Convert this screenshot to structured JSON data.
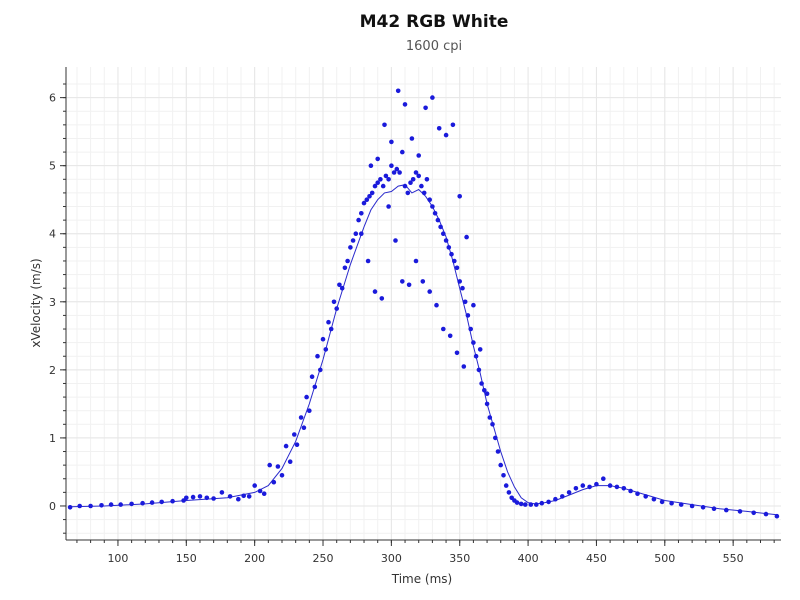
{
  "chart_data": {
    "type": "scatter",
    "title": "M42 RGB White",
    "subtitle": "1600 cpi",
    "xlabel": "Time (ms)",
    "ylabel": "xVelocity (m/s)",
    "xlim": [
      62,
      585
    ],
    "ylim": [
      -0.5,
      6.45
    ],
    "xticks": [
      100,
      150,
      200,
      250,
      300,
      350,
      400,
      450,
      500,
      550
    ],
    "yticks": [
      0,
      1,
      2,
      3,
      4,
      5,
      6
    ],
    "grid": true,
    "legend": "none",
    "colors": {
      "points": "#1a1adb",
      "line": "#2a2acc",
      "grid": "#e6e6e6",
      "axis": "#333333"
    },
    "series": [
      {
        "kind": "points",
        "x": [
          65,
          72,
          80,
          88,
          95,
          102,
          110,
          118,
          125,
          132,
          140,
          148,
          150,
          155,
          160,
          165,
          170,
          176,
          182,
          188,
          192,
          196,
          200,
          204,
          207,
          211,
          214,
          217,
          220,
          223,
          226,
          229,
          231,
          234,
          236,
          238,
          240,
          242,
          244,
          246,
          248,
          250,
          252,
          254,
          256,
          258,
          260,
          262,
          264,
          266,
          268,
          270,
          272,
          274,
          276,
          278,
          280,
          282,
          284,
          286,
          288,
          290,
          292,
          294,
          296,
          298,
          300,
          302,
          304,
          306,
          308,
          310,
          312,
          314,
          316,
          318,
          320,
          322,
          324,
          326,
          328,
          330,
          332,
          334,
          336,
          338,
          340,
          342,
          344,
          346,
          348,
          350,
          352,
          354,
          356,
          358,
          360,
          362,
          364,
          366,
          368,
          370,
          372,
          374,
          376,
          378,
          380,
          382,
          384,
          386,
          388,
          390,
          392,
          395,
          398,
          402,
          406,
          410,
          415,
          420,
          425,
          430,
          435,
          440,
          445,
          450,
          455,
          460,
          465,
          470,
          475,
          480,
          486,
          492,
          498,
          505,
          512,
          520,
          528,
          536,
          545,
          555,
          565,
          574,
          582,
          278,
          283,
          288,
          293,
          298,
          303,
          308,
          313,
          318,
          323,
          328,
          333,
          338,
          343,
          348,
          353,
          285,
          290,
          295,
          300,
          305,
          310,
          315,
          320,
          325,
          330,
          335,
          340,
          345,
          350,
          355,
          360,
          365,
          370
        ],
        "y": [
          -0.02,
          0.0,
          0.0,
          0.01,
          0.02,
          0.02,
          0.03,
          0.04,
          0.05,
          0.06,
          0.07,
          0.08,
          0.12,
          0.13,
          0.14,
          0.12,
          0.11,
          0.2,
          0.14,
          0.1,
          0.15,
          0.14,
          0.3,
          0.22,
          0.18,
          0.6,
          0.35,
          0.58,
          0.45,
          0.88,
          0.65,
          1.05,
          0.9,
          1.3,
          1.15,
          1.6,
          1.4,
          1.9,
          1.75,
          2.2,
          2.0,
          2.45,
          2.3,
          2.7,
          2.6,
          3.0,
          2.9,
          3.25,
          3.2,
          3.5,
          3.6,
          3.8,
          3.9,
          4.0,
          4.2,
          4.3,
          4.45,
          4.5,
          4.55,
          4.6,
          4.7,
          4.75,
          4.8,
          4.7,
          4.85,
          4.8,
          5.0,
          4.9,
          4.95,
          4.9,
          5.2,
          4.7,
          4.6,
          4.75,
          4.8,
          4.9,
          4.85,
          4.7,
          4.6,
          4.8,
          4.5,
          4.4,
          4.3,
          4.2,
          4.1,
          4.0,
          3.9,
          3.8,
          3.7,
          3.6,
          3.5,
          3.3,
          3.2,
          3.0,
          2.8,
          2.6,
          2.4,
          2.2,
          2.0,
          1.8,
          1.7,
          1.5,
          1.3,
          1.2,
          1.0,
          0.8,
          0.6,
          0.45,
          0.3,
          0.2,
          0.12,
          0.08,
          0.05,
          0.03,
          0.02,
          0.02,
          0.02,
          0.04,
          0.06,
          0.1,
          0.14,
          0.2,
          0.26,
          0.3,
          0.28,
          0.32,
          0.4,
          0.3,
          0.28,
          0.26,
          0.22,
          0.18,
          0.14,
          0.1,
          0.06,
          0.04,
          0.02,
          0.0,
          -0.02,
          -0.04,
          -0.06,
          -0.08,
          -0.1,
          -0.12,
          -0.15,
          4.0,
          3.6,
          3.15,
          3.05,
          4.4,
          3.9,
          3.3,
          3.25,
          3.6,
          3.3,
          3.15,
          2.95,
          2.6,
          2.5,
          2.25,
          2.05,
          5.0,
          5.1,
          5.6,
          5.35,
          6.1,
          5.9,
          5.4,
          5.15,
          5.85,
          6.0,
          5.55,
          5.45,
          5.6,
          4.55,
          3.95,
          2.95,
          2.3,
          1.65
        ],
        "color": "#1a1adb"
      },
      {
        "kind": "line",
        "x": [
          65,
          90,
          120,
          150,
          180,
          200,
          210,
          220,
          230,
          240,
          250,
          260,
          270,
          280,
          285,
          290,
          295,
          300,
          305,
          310,
          315,
          320,
          325,
          330,
          335,
          340,
          345,
          350,
          355,
          360,
          365,
          370,
          375,
          380,
          385,
          390,
          395,
          400,
          405,
          410,
          420,
          430,
          440,
          450,
          460,
          470,
          480,
          490,
          500,
          520,
          540,
          560,
          582
        ],
        "y": [
          -0.01,
          0.0,
          0.03,
          0.08,
          0.12,
          0.2,
          0.3,
          0.55,
          0.95,
          1.5,
          2.15,
          2.9,
          3.55,
          4.1,
          4.35,
          4.5,
          4.6,
          4.62,
          4.7,
          4.72,
          4.6,
          4.65,
          4.55,
          4.4,
          4.2,
          3.95,
          3.6,
          3.2,
          2.8,
          2.35,
          1.95,
          1.5,
          1.15,
          0.8,
          0.5,
          0.28,
          0.12,
          0.05,
          0.03,
          0.04,
          0.08,
          0.16,
          0.24,
          0.3,
          0.3,
          0.26,
          0.2,
          0.14,
          0.08,
          0.02,
          -0.04,
          -0.08,
          -0.13
        ],
        "color": "#2a2acc"
      }
    ]
  }
}
